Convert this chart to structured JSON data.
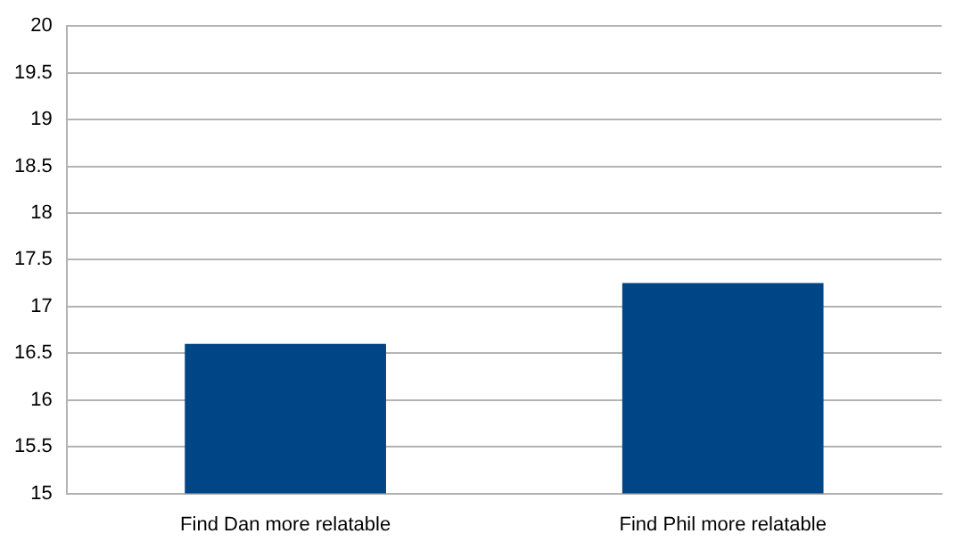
{
  "chart_data": {
    "type": "bar",
    "categories": [
      "Find Dan more relatable",
      "Find Phil more relatable"
    ],
    "values": [
      16.6,
      17.25
    ],
    "color": "#004586",
    "ylim": [
      15,
      20
    ],
    "yticks": [
      15,
      15.5,
      16,
      16.5,
      17,
      17.5,
      18,
      18.5,
      19,
      19.5,
      20
    ],
    "grid": "y"
  }
}
